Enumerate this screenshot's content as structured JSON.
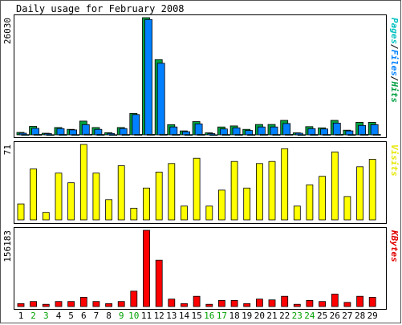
{
  "chart_data": [
    {
      "type": "bar",
      "title": "Daily usage for February 2008",
      "categories": [
        "1",
        "2",
        "3",
        "4",
        "5",
        "6",
        "7",
        "8",
        "9",
        "10",
        "11",
        "12",
        "13",
        "14",
        "15",
        "16",
        "17",
        "18",
        "19",
        "20",
        "21",
        "22",
        "23",
        "24",
        "25",
        "26",
        "27",
        "28",
        "29"
      ],
      "weekend_days": [
        "2",
        "3",
        "9",
        "10",
        "16",
        "17",
        "23",
        "24"
      ],
      "ymax_label": "26030",
      "ylim": [
        0,
        26030
      ],
      "legend_parts": [
        {
          "text": "Pages",
          "color": "#00c0c0"
        },
        {
          "text": "/",
          "color": "#000000"
        },
        {
          "text": "Files",
          "color": "#0080ff"
        },
        {
          "text": "/",
          "color": "#000000"
        },
        {
          "text": "Hits",
          "color": "#00a040"
        }
      ],
      "series": [
        {
          "name": "Hits",
          "color": "#00a040",
          "values": [
            530,
            1870,
            350,
            1630,
            1220,
            3040,
            1630,
            480,
            1630,
            4750,
            26030,
            16700,
            2260,
            870,
            2950,
            440,
            1740,
            1980,
            1220,
            2300,
            2300,
            3210,
            450,
            1810,
            1560,
            3210,
            1040,
            2780,
            2780
          ]
        },
        {
          "name": "Files",
          "color": "#0080ff",
          "values": [
            350,
            1440,
            260,
            1390,
            1080,
            2260,
            1220,
            310,
            1390,
            4490,
            25620,
            15900,
            1740,
            700,
            2430,
            260,
            1310,
            1560,
            960,
            1740,
            1740,
            2520,
            350,
            1380,
            1310,
            2600,
            870,
            2080,
            2250
          ]
        },
        {
          "name": "Pages",
          "color": "#00c0c0",
          "values": [
            50,
            90,
            30,
            80,
            60,
            120,
            70,
            30,
            70,
            90,
            100,
            100,
            90,
            50,
            90,
            20,
            80,
            80,
            50,
            90,
            70,
            110,
            30,
            80,
            70,
            110,
            50,
            90,
            90
          ]
        }
      ]
    },
    {
      "type": "bar",
      "categories": [
        "1",
        "2",
        "3",
        "4",
        "5",
        "6",
        "7",
        "8",
        "9",
        "10",
        "11",
        "12",
        "13",
        "14",
        "15",
        "16",
        "17",
        "18",
        "19",
        "20",
        "21",
        "22",
        "23",
        "24",
        "25",
        "26",
        "27",
        "28",
        "29"
      ],
      "ymax_label": "71",
      "ylim": [
        0,
        71
      ],
      "legend_parts": [
        {
          "text": "Visits",
          "color": "#e6e600"
        }
      ],
      "series": [
        {
          "name": "Visits",
          "color": "#ffff00",
          "values": [
            15,
            48,
            7,
            44,
            35,
            71,
            44,
            19,
            51,
            11,
            30,
            45,
            53,
            13,
            58,
            13,
            28,
            55,
            30,
            53,
            55,
            67,
            13,
            33,
            41,
            64,
            22,
            50,
            57
          ]
        }
      ]
    },
    {
      "type": "bar",
      "categories": [
        "1",
        "2",
        "3",
        "4",
        "5",
        "6",
        "7",
        "8",
        "9",
        "10",
        "11",
        "12",
        "13",
        "14",
        "15",
        "16",
        "17",
        "18",
        "19",
        "20",
        "21",
        "22",
        "23",
        "24",
        "25",
        "26",
        "27",
        "28",
        "29"
      ],
      "ymax_label": "156183",
      "ylim": [
        0,
        156183
      ],
      "legend_parts": [
        {
          "text": "KBytes",
          "color": "#e00000"
        }
      ],
      "series": [
        {
          "name": "KBytes",
          "color": "#ff0000",
          "values": [
            6100,
            10300,
            4600,
            10300,
            10300,
            19000,
            10300,
            6100,
            10300,
            31500,
            156183,
            95000,
            15300,
            6100,
            21000,
            4600,
            12500,
            12500,
            6100,
            15300,
            13600,
            21000,
            4600,
            12500,
            10300,
            25500,
            8600,
            21000,
            19000
          ]
        }
      ]
    }
  ]
}
